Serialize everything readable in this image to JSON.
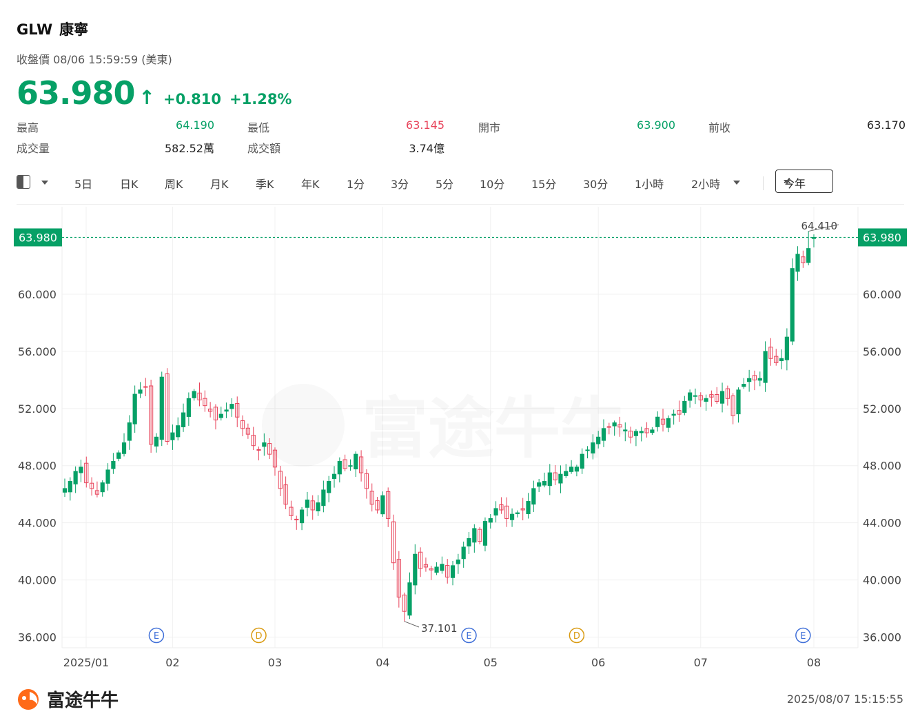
{
  "header": {
    "ticker": "GLW",
    "name": "康寧",
    "subtitle": "收盤價 08/06 15:59:59 (美東)",
    "price": "63.980",
    "change": "+0.810",
    "change_pct": "+1.28%"
  },
  "stats": {
    "high_label": "最高",
    "high_value": "64.190",
    "low_label": "最低",
    "low_value": "63.145",
    "open_label": "開市",
    "open_value": "63.900",
    "prev_label": "前收",
    "prev_value": "63.170",
    "volume_label": "成交量",
    "volume_value": "582.52萬",
    "turnover_label": "成交額",
    "turnover_value": "3.74億"
  },
  "toolbar": {
    "tabs": [
      "5日",
      "日K",
      "周K",
      "月K",
      "季K",
      "年K",
      "1分",
      "3分",
      "5分",
      "10分",
      "15分",
      "30分",
      "1小時"
    ],
    "more_label": "2小時",
    "range_label": "今年"
  },
  "colors": {
    "up": "#06a066",
    "down": "#e8435a",
    "earnings": "#3f6fd8",
    "dividend": "#d99a10"
  },
  "chart_data": {
    "type": "candlestick",
    "y_ticks": [
      "60.000",
      "56.000",
      "52.000",
      "48.000",
      "44.000",
      "40.000",
      "36.000"
    ],
    "ylim": [
      36,
      64.4
    ],
    "x_ticks": [
      {
        "label": "2025/01",
        "index": 0
      },
      {
        "label": "02",
        "index": 20
      },
      {
        "label": "03",
        "index": 39
      },
      {
        "label": "04",
        "index": 59
      },
      {
        "label": "05",
        "index": 79
      },
      {
        "label": "06",
        "index": 99
      },
      {
        "label": "07",
        "index": 118
      },
      {
        "label": "08",
        "index": 139
      }
    ],
    "last_price": "63.980",
    "max_label": "64.410",
    "min_label": "37.101",
    "events": [
      {
        "type": "E",
        "index": 17
      },
      {
        "type": "D",
        "index": 36
      },
      {
        "type": "E",
        "index": 75
      },
      {
        "type": "D",
        "index": 95
      },
      {
        "type": "E",
        "index": 137
      }
    ],
    "closes": [
      46.4,
      46.9,
      47.6,
      47.9,
      46.8,
      46.4,
      46.0,
      46.8,
      47.7,
      48.3,
      48.9,
      49.6,
      51.0,
      53.0,
      53.3,
      53.5,
      49.5,
      50.0,
      54.2,
      49.7,
      50.3,
      50.8,
      51.7,
      52.7,
      53.2,
      52.6,
      52.2,
      51.8,
      51.2,
      51.6,
      51.9,
      52.3,
      51.4,
      50.6,
      50.2,
      49.4,
      49.1,
      49.6,
      48.8,
      47.9,
      46.4,
      45.3,
      44.5,
      44.2,
      44.9,
      45.6,
      44.9,
      45.4,
      46.3,
      46.9,
      47.4,
      48.3,
      47.8,
      48.0,
      48.8,
      47.5,
      46.4,
      45.3,
      44.9,
      45.9,
      44.3,
      41.2,
      38.8,
      37.8,
      39.8,
      41.8,
      40.8,
      40.9,
      40.7,
      40.9,
      41.1,
      40.2,
      41.0,
      41.4,
      42.3,
      42.9,
      43.6,
      42.7,
      44.1,
      44.3,
      45.0,
      44.9,
      44.3,
      44.6,
      44.7,
      44.9,
      45.5,
      46.4,
      46.8,
      46.9,
      47.5,
      47.0,
      47.4,
      47.6,
      47.9,
      47.9,
      48.8,
      49.1,
      49.6,
      50.0,
      50.6,
      50.7,
      51.0,
      50.7,
      50.5,
      50.0,
      50.4,
      50.4,
      50.3,
      50.5,
      51.4,
      50.9,
      51.3,
      51.6,
      51.6,
      52.5,
      53.1,
      52.9,
      52.6,
      52.7,
      52.8,
      52.5,
      53.2,
      52.7,
      51.5,
      53.3,
      53.7,
      54.1,
      54.0,
      54.1,
      56.0,
      55.5,
      55.2,
      55.5,
      57.0,
      61.8,
      62.8,
      62.2,
      63.2,
      63.98
    ],
    "values_note": ""
  },
  "footer": {
    "logo_text": "富途牛牛",
    "timestamp": "2025/08/07 15:15:55"
  }
}
